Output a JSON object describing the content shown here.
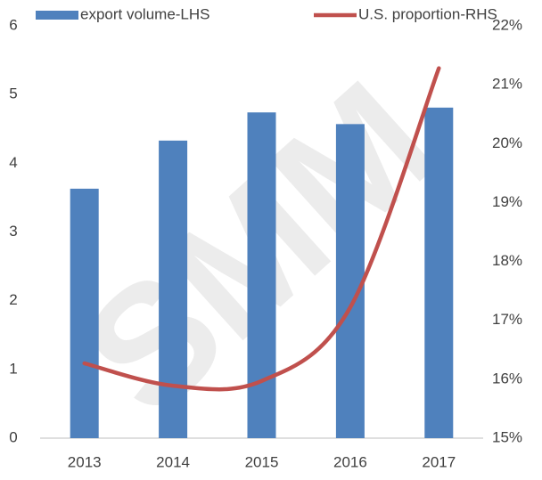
{
  "chart_data": {
    "type": "bar",
    "watermark": "SMM",
    "categories": [
      "2013",
      "2014",
      "2015",
      "2016",
      "2017"
    ],
    "series": [
      {
        "name": "export volume-LHS",
        "color": "#4f81bd",
        "type": "bar",
        "values": [
          3.63,
          4.33,
          4.74,
          4.57,
          4.81
        ]
      },
      {
        "name": "U.S. proportion-RHS",
        "color": "#c0504d",
        "type": "line",
        "axis": "y2",
        "smooth": true,
        "values": [
          16.27,
          15.89,
          15.97,
          17.22,
          21.28
        ]
      }
    ],
    "ylim": [
      0,
      6
    ],
    "yticks": [
      0,
      1,
      2,
      3,
      4,
      5,
      6
    ],
    "y2lim": [
      15,
      22
    ],
    "y2ticks": [
      {
        "value": 15,
        "label": "15%"
      },
      {
        "value": 16,
        "label": "16%"
      },
      {
        "value": 17,
        "label": "17%"
      },
      {
        "value": 18,
        "label": "18%"
      },
      {
        "value": 19,
        "label": "19%"
      },
      {
        "value": 20,
        "label": "20%"
      },
      {
        "value": 21,
        "label": "21%"
      },
      {
        "value": 22,
        "label": "22%"
      }
    ],
    "legend": "top",
    "grid": false
  }
}
